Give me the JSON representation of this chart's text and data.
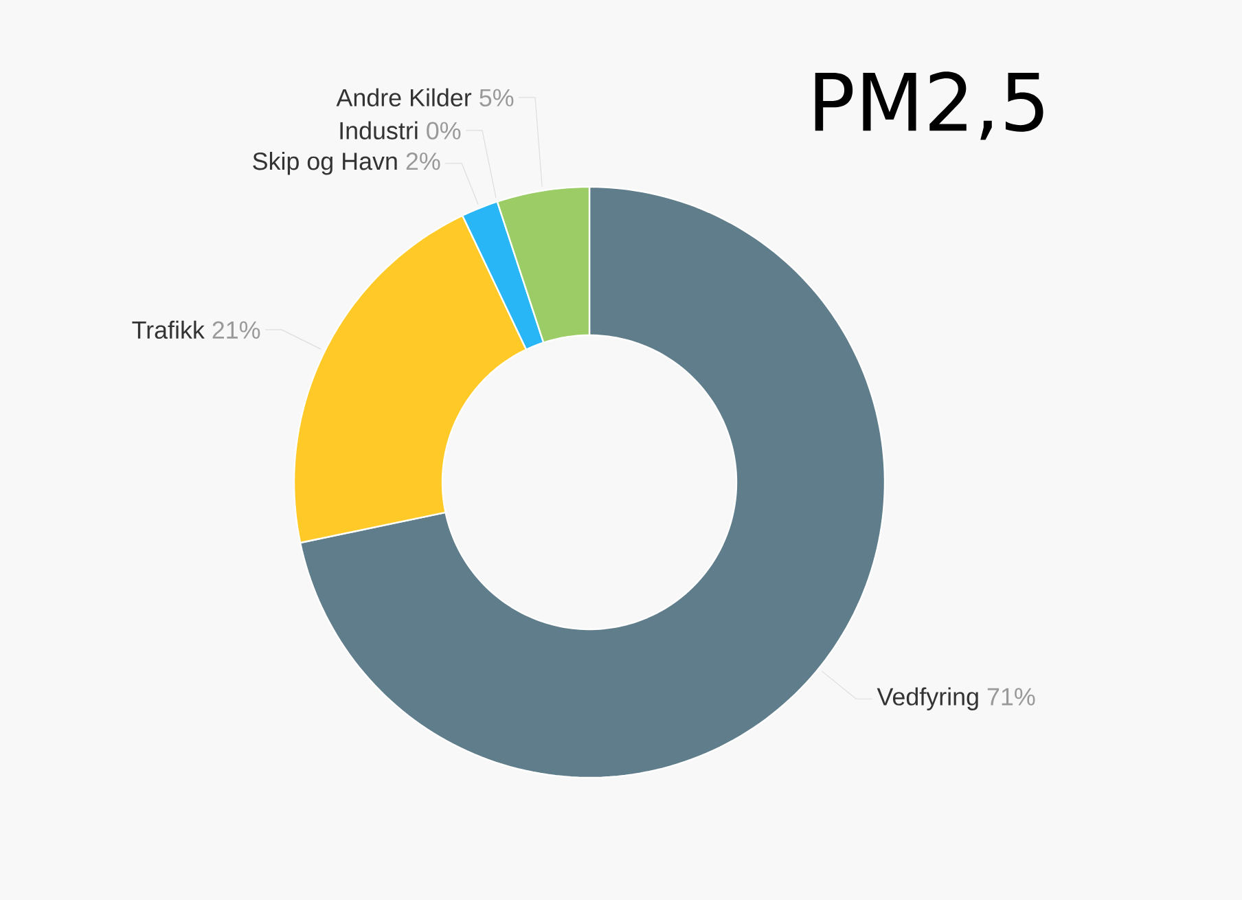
{
  "chart_data": {
    "type": "donut",
    "title": "PM2,5",
    "categories": [
      "Vedfyring",
      "Trafikk",
      "Skip og Havn",
      "Industri",
      "Andre Kilder"
    ],
    "values": [
      71,
      21,
      2,
      0,
      5
    ],
    "value_labels": [
      "71%",
      "21%",
      "2%",
      "0%",
      "5%"
    ],
    "colors": [
      "#607d8b",
      "#ffca28",
      "#29b6f6",
      "#9e9e9e",
      "#9ccc65"
    ]
  }
}
